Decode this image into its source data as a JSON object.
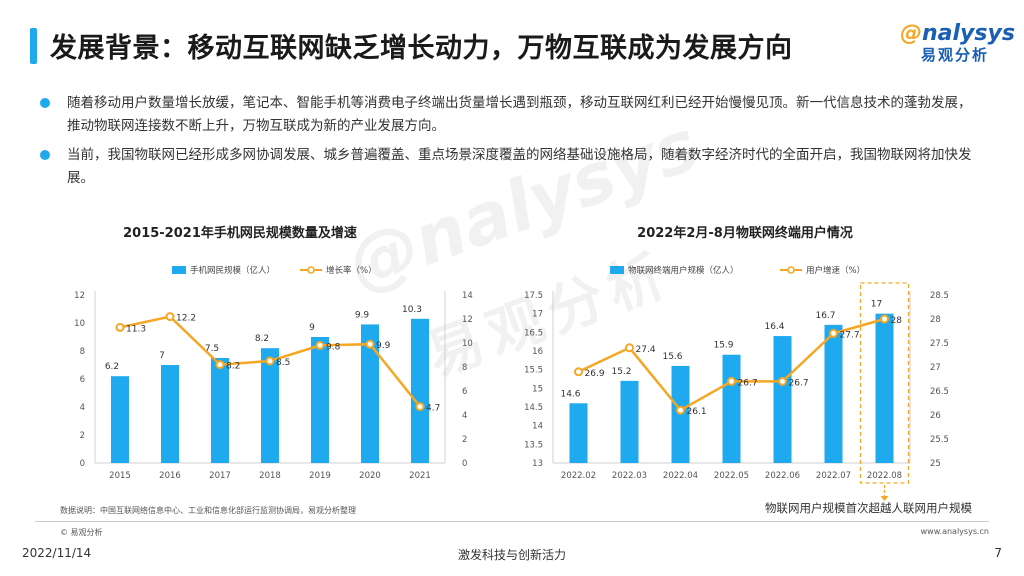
{
  "header": {
    "title": "发展背景：移动互联网缺乏增长动力，万物互联成为发展方向",
    "logo_en": "nalysys",
    "logo_cn": "易观分析"
  },
  "bullets": [
    "随着移动用户数量增长放缓，笔记本、智能手机等消费电子终端出货量增长遇到瓶颈，移动互联网红利已经开始慢慢见顶。新一代信息技术的蓬勃发展，推动物联网连接数不断上升，万物互联成为新的产业发展方向。",
    "当前，我国物联网已经形成多网协调发展、城乡普遍覆盖、重点场景深度覆盖的网络基础设施格局，随着数字经济时代的全面开启，我国物联网将加快发展。"
  ],
  "colors": {
    "bar": "#1fa9ef",
    "line": "#f5a623",
    "accent": "#1fa9ef"
  },
  "chart_data": [
    {
      "type": "bar",
      "title": "2015-2021年手机网民规模数量及增速",
      "categories": [
        "2015",
        "2016",
        "2017",
        "2018",
        "2019",
        "2020",
        "2021"
      ],
      "series": [
        {
          "name": "手机网民规模（亿人）",
          "type": "bar",
          "axis": "left",
          "values": [
            6.2,
            7,
            7.5,
            8.2,
            9,
            9.9,
            10.3
          ]
        },
        {
          "name": "增长率（%）",
          "type": "line",
          "axis": "right",
          "values": [
            11.3,
            12.2,
            8.2,
            8.5,
            9.8,
            9.9,
            4.7
          ]
        }
      ],
      "ylim_left": [
        0,
        12
      ],
      "yticks_left": [
        0,
        2,
        4,
        6,
        8,
        10,
        12
      ],
      "ylim_right": [
        0,
        14
      ],
      "yticks_right": [
        0,
        2,
        4,
        6,
        8,
        10,
        12,
        14
      ],
      "legend": "top",
      "grid": false
    },
    {
      "type": "bar",
      "title": "2022年2月-8月物联网终端用户情况",
      "categories": [
        "2022.02",
        "2022.03",
        "2022.04",
        "2022.05",
        "2022.06",
        "2022.07",
        "2022.08"
      ],
      "series": [
        {
          "name": "物联网终端用户规模（亿人）",
          "type": "bar",
          "axis": "left",
          "values": [
            14.6,
            15.2,
            15.6,
            15.9,
            16.4,
            16.7,
            17
          ]
        },
        {
          "name": "用户增速（%）",
          "type": "line",
          "axis": "right",
          "values": [
            26.9,
            27.4,
            26.1,
            26.7,
            26.7,
            27.7,
            28
          ]
        }
      ],
      "ylim_left": [
        13,
        17.5
      ],
      "yticks_left": [
        13,
        13.5,
        14,
        14.5,
        15,
        15.5,
        16,
        16.5,
        17,
        17.5
      ],
      "ylim_right": [
        25,
        28.5
      ],
      "yticks_right": [
        25,
        25.5,
        26,
        26.5,
        27,
        27.5,
        28,
        28.5
      ],
      "legend": "top",
      "grid": false,
      "annotation": "物联网用户规模首次超越人联网用户规模"
    }
  ],
  "footer": {
    "note": "数据说明：中国互联网络信息中心、工业和信息化部运行监测协调局，易观分析整理",
    "copyright": "© 易观分析",
    "website": "www.analysys.cn",
    "date": "2022/11/14",
    "slogan": "激发科技与创新活力",
    "page": "7"
  },
  "watermark": {
    "en": "nalysys",
    "cn": "易观分析"
  }
}
